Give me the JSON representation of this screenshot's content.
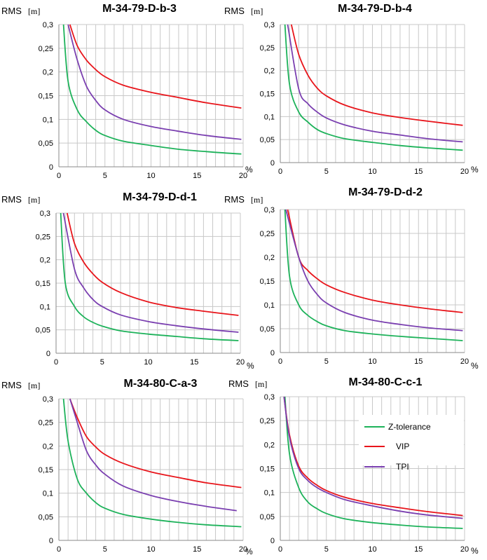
{
  "series_colors": {
    "Z-tolerance": "#1db25a",
    "VIP": "#e8151b",
    "TPI": "#7a3fb0"
  },
  "legend": [
    "Z-tolerance",
    "VIP",
    "TPI"
  ],
  "chart_data": [
    {
      "type": "line",
      "title": "M-34-79-D-b-3",
      "ylabel": "RMS",
      "yunit": "[m]",
      "xlabel": "%",
      "xlim": [
        0,
        20
      ],
      "ylim": [
        0,
        0.3
      ],
      "xticks": [
        "0",
        "5",
        "10",
        "15",
        "20"
      ],
      "yticks": [
        "0",
        "0,05",
        "0,1",
        "0,15",
        "0,2",
        "0,25",
        "0,3"
      ],
      "series": [
        {
          "name": "Z-tolerance",
          "x": [
            0.5,
            1,
            2,
            3,
            4,
            5,
            7,
            10,
            13,
            16,
            19.8
          ],
          "values": [
            0.3,
            0.18,
            0.12,
            0.095,
            0.077,
            0.066,
            0.054,
            0.045,
            0.037,
            0.032,
            0.027
          ]
        },
        {
          "name": "VIP",
          "x": [
            1.2,
            2,
            3,
            4,
            5,
            7,
            10,
            13,
            16,
            19.8
          ],
          "values": [
            0.3,
            0.255,
            0.225,
            0.205,
            0.19,
            0.172,
            0.157,
            0.146,
            0.135,
            0.124
          ]
        },
        {
          "name": "TPI",
          "x": [
            1,
            2,
            3,
            4,
            5,
            7,
            10,
            13,
            16,
            19.8
          ],
          "values": [
            0.3,
            0.225,
            0.17,
            0.14,
            0.12,
            0.1,
            0.085,
            0.075,
            0.066,
            0.058
          ]
        }
      ]
    },
    {
      "type": "line",
      "title": "M-34-79-D-b-4",
      "ylabel": "RMS",
      "yunit": "[m]",
      "xlabel": "%",
      "xlim": [
        0,
        20
      ],
      "ylim": [
        0,
        0.3
      ],
      "xticks": [
        "0",
        "5",
        "10",
        "15",
        "20"
      ],
      "yticks": [
        "0",
        "0,05",
        "0,1",
        "0,15",
        "0,2",
        "0,25",
        "0,3"
      ],
      "series": [
        {
          "name": "Z-tolerance",
          "x": [
            0.5,
            1,
            2,
            3,
            4,
            5,
            7,
            10,
            13,
            16,
            19.8
          ],
          "values": [
            0.3,
            0.17,
            0.11,
            0.088,
            0.072,
            0.063,
            0.052,
            0.044,
            0.037,
            0.032,
            0.027
          ]
        },
        {
          "name": "VIP",
          "x": [
            1.2,
            2,
            3,
            4,
            5,
            7,
            10,
            13,
            16,
            19.8
          ],
          "values": [
            0.3,
            0.235,
            0.19,
            0.162,
            0.145,
            0.125,
            0.108,
            0.098,
            0.09,
            0.081
          ]
        },
        {
          "name": "TPI",
          "x": [
            0.8,
            2,
            3,
            4,
            5,
            7,
            10,
            13,
            16,
            19.8
          ],
          "values": [
            0.3,
            0.16,
            0.128,
            0.11,
            0.097,
            0.082,
            0.068,
            0.06,
            0.052,
            0.045
          ]
        }
      ]
    },
    {
      "type": "line",
      "title": "M-34-79-D-d-1",
      "ylabel": "RMS",
      "yunit": "[m]",
      "xlabel": "%",
      "xlim": [
        0,
        20
      ],
      "ylim": [
        0,
        0.3
      ],
      "xticks": [
        "0",
        "5",
        "10",
        "15",
        "20"
      ],
      "yticks": [
        "0",
        "0,05",
        "0,1",
        "0,15",
        "0,2",
        "0,25",
        "0,3"
      ],
      "series": [
        {
          "name": "Z-tolerance",
          "x": [
            0.5,
            1,
            2,
            3,
            4,
            5,
            7,
            10,
            13,
            16,
            19.8
          ],
          "values": [
            0.3,
            0.15,
            0.1,
            0.078,
            0.066,
            0.058,
            0.048,
            0.041,
            0.036,
            0.031,
            0.027
          ]
        },
        {
          "name": "VIP",
          "x": [
            1.2,
            2,
            3,
            4,
            5,
            7,
            10,
            13,
            16,
            19.8
          ],
          "values": [
            0.3,
            0.235,
            0.195,
            0.17,
            0.152,
            0.13,
            0.11,
            0.098,
            0.09,
            0.081
          ]
        },
        {
          "name": "TPI",
          "x": [
            0.8,
            2,
            3,
            4,
            5,
            7,
            10,
            13,
            16,
            19.8
          ],
          "values": [
            0.3,
            0.18,
            0.14,
            0.115,
            0.1,
            0.082,
            0.068,
            0.059,
            0.052,
            0.045
          ]
        }
      ]
    },
    {
      "type": "line",
      "title": "M-34-79-D-d-2",
      "ylabel": "RMS",
      "yunit": "[m]",
      "xlabel": "%",
      "xlim": [
        0,
        20
      ],
      "ylim": [
        0,
        0.3
      ],
      "xticks": [
        "0",
        "5",
        "10",
        "15",
        "20"
      ],
      "yticks": [
        "0",
        "0,05",
        "0,1",
        "0,15",
        "0,2",
        "0,25",
        "0,3"
      ],
      "series": [
        {
          "name": "Z-tolerance",
          "x": [
            0.5,
            1,
            2,
            3,
            4,
            5,
            7,
            10,
            13,
            16,
            19.8
          ],
          "values": [
            0.3,
            0.16,
            0.1,
            0.078,
            0.065,
            0.056,
            0.046,
            0.039,
            0.034,
            0.03,
            0.025
          ]
        },
        {
          "name": "VIP",
          "x": [
            0.8,
            2,
            3,
            4,
            5,
            7,
            10,
            13,
            16,
            19.8
          ],
          "values": [
            0.3,
            0.2,
            0.172,
            0.155,
            0.142,
            0.126,
            0.11,
            0.1,
            0.092,
            0.084
          ]
        },
        {
          "name": "TPI",
          "x": [
            0.6,
            2,
            3,
            4,
            5,
            7,
            10,
            13,
            16,
            19.8
          ],
          "values": [
            0.3,
            0.2,
            0.15,
            0.122,
            0.104,
            0.084,
            0.068,
            0.059,
            0.052,
            0.046
          ]
        }
      ]
    },
    {
      "type": "line",
      "title": "M-34-80-C-a-3",
      "ylabel": "RMS",
      "yunit": "[m]",
      "xlabel": "%",
      "xlim": [
        0,
        20
      ],
      "ylim": [
        0,
        0.3
      ],
      "xticks": [
        "0",
        "5",
        "10",
        "15",
        "20"
      ],
      "yticks": [
        "0",
        "0,05",
        "0,1",
        "0,15",
        "0,2",
        "0,25",
        "0,3"
      ],
      "series": [
        {
          "name": "Z-tolerance",
          "x": [
            0.5,
            1,
            2,
            3,
            4,
            5,
            7,
            10,
            13,
            16,
            19.8
          ],
          "values": [
            0.3,
            0.21,
            0.13,
            0.1,
            0.08,
            0.068,
            0.055,
            0.045,
            0.038,
            0.033,
            0.029
          ]
        },
        {
          "name": "VIP",
          "x": [
            1.2,
            2,
            3,
            4,
            5,
            7,
            10,
            13,
            16,
            19.8
          ],
          "values": [
            0.3,
            0.26,
            0.22,
            0.198,
            0.182,
            0.163,
            0.145,
            0.133,
            0.122,
            0.112
          ]
        },
        {
          "name": "TPI",
          "x": [
            1.2,
            2,
            3,
            4,
            5,
            7,
            10,
            13,
            16,
            19.3
          ],
          "values": [
            0.3,
            0.25,
            0.19,
            0.16,
            0.14,
            0.115,
            0.095,
            0.082,
            0.072,
            0.063
          ]
        }
      ]
    },
    {
      "type": "line",
      "title": "M-34-80-C-c-1",
      "ylabel": "RMS",
      "yunit": "[m]",
      "xlabel": "%",
      "xlim": [
        0,
        20
      ],
      "ylim": [
        0,
        0.3
      ],
      "xticks": [
        "0",
        "5",
        "10",
        "15",
        "20"
      ],
      "yticks": [
        "0",
        "0,05",
        "0,1",
        "0,15",
        "0,2",
        "0,25",
        "0,3"
      ],
      "series": [
        {
          "name": "Z-tolerance",
          "x": [
            0.5,
            1,
            2,
            3,
            4,
            5,
            7,
            10,
            13,
            16,
            19.8
          ],
          "values": [
            0.3,
            0.18,
            0.11,
            0.08,
            0.066,
            0.056,
            0.045,
            0.037,
            0.032,
            0.028,
            0.025
          ]
        },
        {
          "name": "VIP",
          "x": [
            0.4,
            1,
            2,
            3,
            4,
            5,
            7,
            10,
            13,
            16,
            19.8
          ],
          "values": [
            0.3,
            0.22,
            0.155,
            0.13,
            0.115,
            0.104,
            0.09,
            0.077,
            0.068,
            0.06,
            0.052
          ]
        },
        {
          "name": "TPI",
          "x": [
            0.4,
            1,
            2,
            3,
            4,
            5,
            7,
            10,
            13,
            16,
            19.8
          ],
          "values": [
            0.3,
            0.215,
            0.15,
            0.125,
            0.11,
            0.1,
            0.085,
            0.072,
            0.061,
            0.053,
            0.046
          ]
        }
      ]
    }
  ]
}
